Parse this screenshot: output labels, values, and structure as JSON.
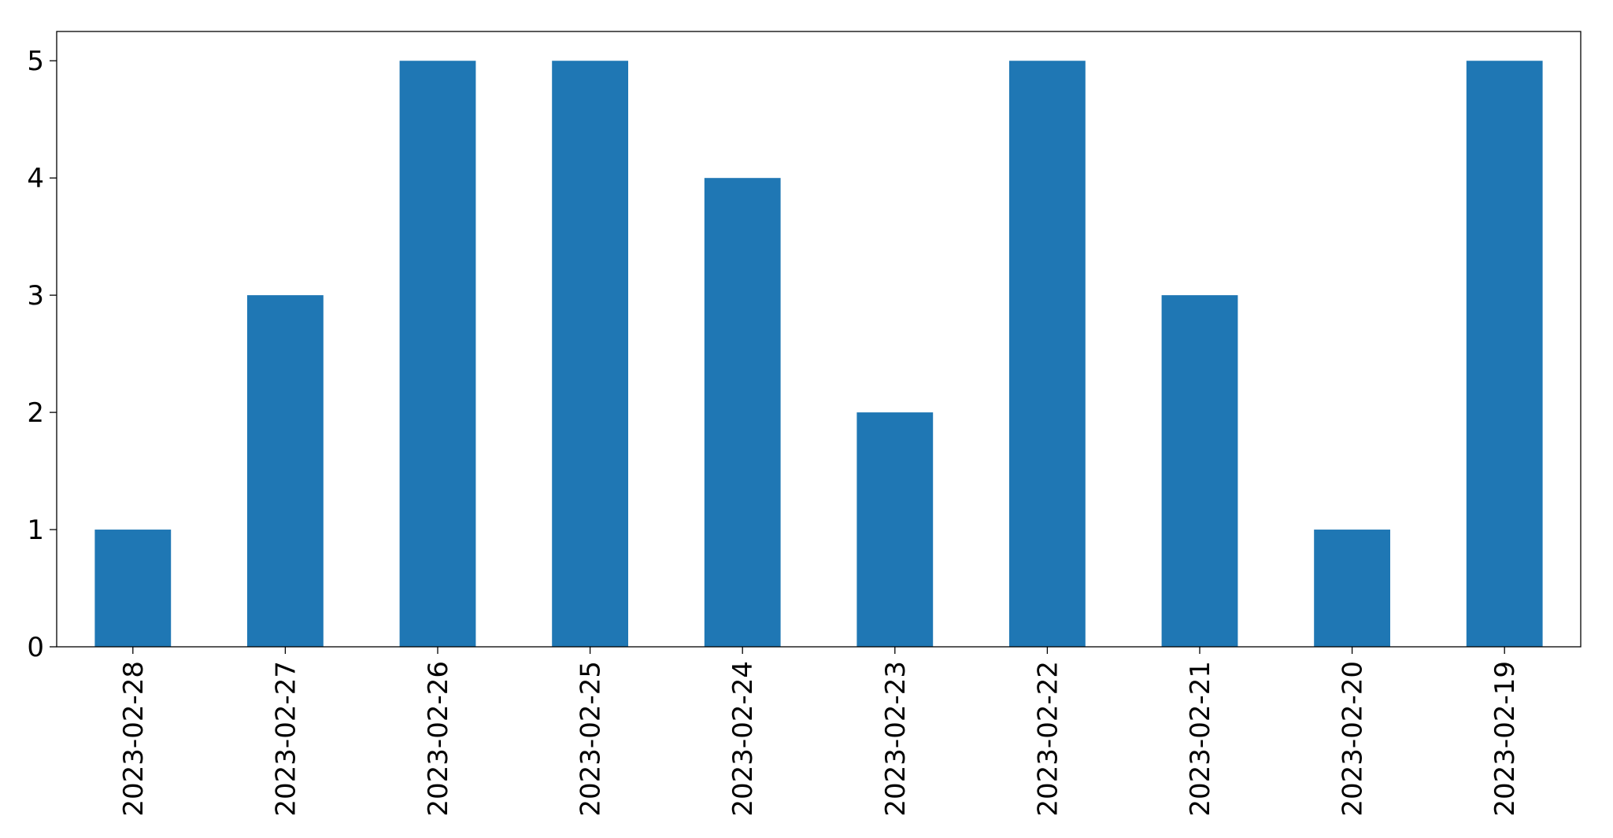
{
  "chart_data": {
    "type": "bar",
    "categories": [
      "2023-02-28",
      "2023-02-27",
      "2023-02-26",
      "2023-02-25",
      "2023-02-24",
      "2023-02-23",
      "2023-02-22",
      "2023-02-21",
      "2023-02-20",
      "2023-02-19"
    ],
    "values": [
      1,
      3,
      5,
      5,
      4,
      2,
      5,
      3,
      1,
      5
    ],
    "color": "#1f77b4",
    "ylim": [
      0,
      5.25
    ],
    "yticks": [
      0,
      1,
      2,
      3,
      4,
      5
    ],
    "grid": false
  }
}
